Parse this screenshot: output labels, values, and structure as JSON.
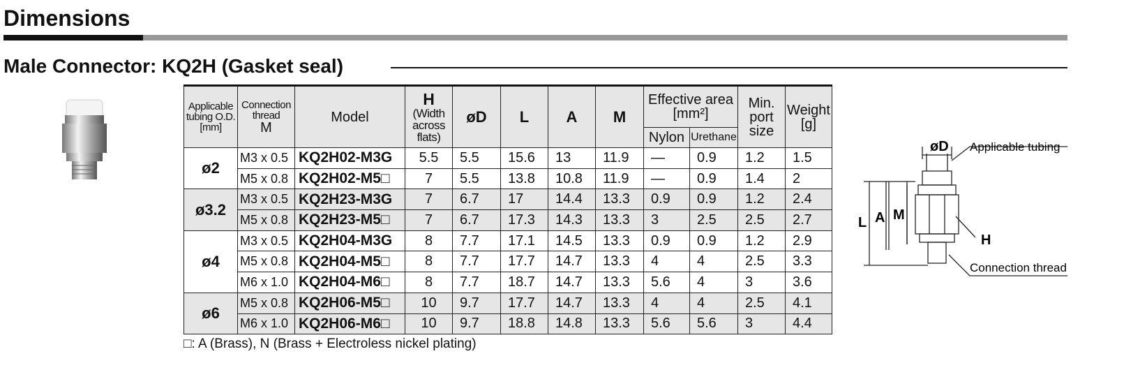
{
  "title": "Dimensions",
  "subtitle": "Male Connector: KQ2H (Gasket seal)",
  "table": {
    "headers": {
      "tubing": "Applicable tubing O.D. [mm]",
      "thread": "Connection thread",
      "thread_symbol": "M",
      "model": "Model",
      "h": "H",
      "h_note": "(Width across flats)",
      "d": "øD",
      "l": "L",
      "a": "A",
      "m": "M",
      "effective_area": "Effective area [mm²]",
      "nylon": "Nylon",
      "urethane": "Urethane",
      "port": "Min. port size",
      "weight": "Weight [g]"
    },
    "groups": [
      {
        "tubing": "ø2",
        "rows": [
          [
            "M3 x 0.5",
            "KQ2H02-M3G",
            "5.5",
            "5.5",
            "15.6",
            "13",
            "11.9",
            "—",
            "0.9",
            "1.2",
            "1.5"
          ],
          [
            "M5 x 0.8",
            "KQ2H02-M5□",
            "7",
            "5.5",
            "13.8",
            "10.8",
            "11.9",
            "—",
            "0.9",
            "1.4",
            "2"
          ]
        ]
      },
      {
        "tubing": "ø3.2",
        "rows": [
          [
            "M3 x 0.5",
            "KQ2H23-M3G",
            "7",
            "6.7",
            "17",
            "14.4",
            "13.3",
            "0.9",
            "0.9",
            "1.2",
            "2.4"
          ],
          [
            "M5 x 0.8",
            "KQ2H23-M5□",
            "7",
            "6.7",
            "17.3",
            "14.3",
            "13.3",
            "3",
            "2.5",
            "2.5",
            "2.7"
          ]
        ]
      },
      {
        "tubing": "ø4",
        "rows": [
          [
            "M3 x 0.5",
            "KQ2H04-M3G",
            "8",
            "7.7",
            "17.1",
            "14.5",
            "13.3",
            "0.9",
            "0.9",
            "1.2",
            "2.9"
          ],
          [
            "M5 x 0.8",
            "KQ2H04-M5□",
            "8",
            "7.7",
            "17.7",
            "14.7",
            "13.3",
            "4",
            "4",
            "2.5",
            "3.3"
          ],
          [
            "M6 x 1.0",
            "KQ2H04-M6□",
            "8",
            "7.7",
            "18.7",
            "14.7",
            "13.3",
            "5.6",
            "4",
            "3",
            "3.6"
          ]
        ]
      },
      {
        "tubing": "ø6",
        "rows": [
          [
            "M5 x 0.8",
            "KQ2H06-M5□",
            "10",
            "9.7",
            "17.7",
            "14.7",
            "13.3",
            "4",
            "4",
            "2.5",
            "4.1"
          ],
          [
            "M6 x 1.0",
            "KQ2H06-M6□",
            "10",
            "9.7",
            "18.8",
            "14.8",
            "13.3",
            "5.6",
            "5.6",
            "3",
            "4.4"
          ]
        ]
      }
    ]
  },
  "footnote": "□: A (Brass), N (Brass + Electroless nickel plating)",
  "diagram": {
    "d": "øD",
    "tubing": "Applicable tubing",
    "l": "L",
    "a": "A",
    "m": "M",
    "h": "H",
    "thread": "Connection thread"
  }
}
